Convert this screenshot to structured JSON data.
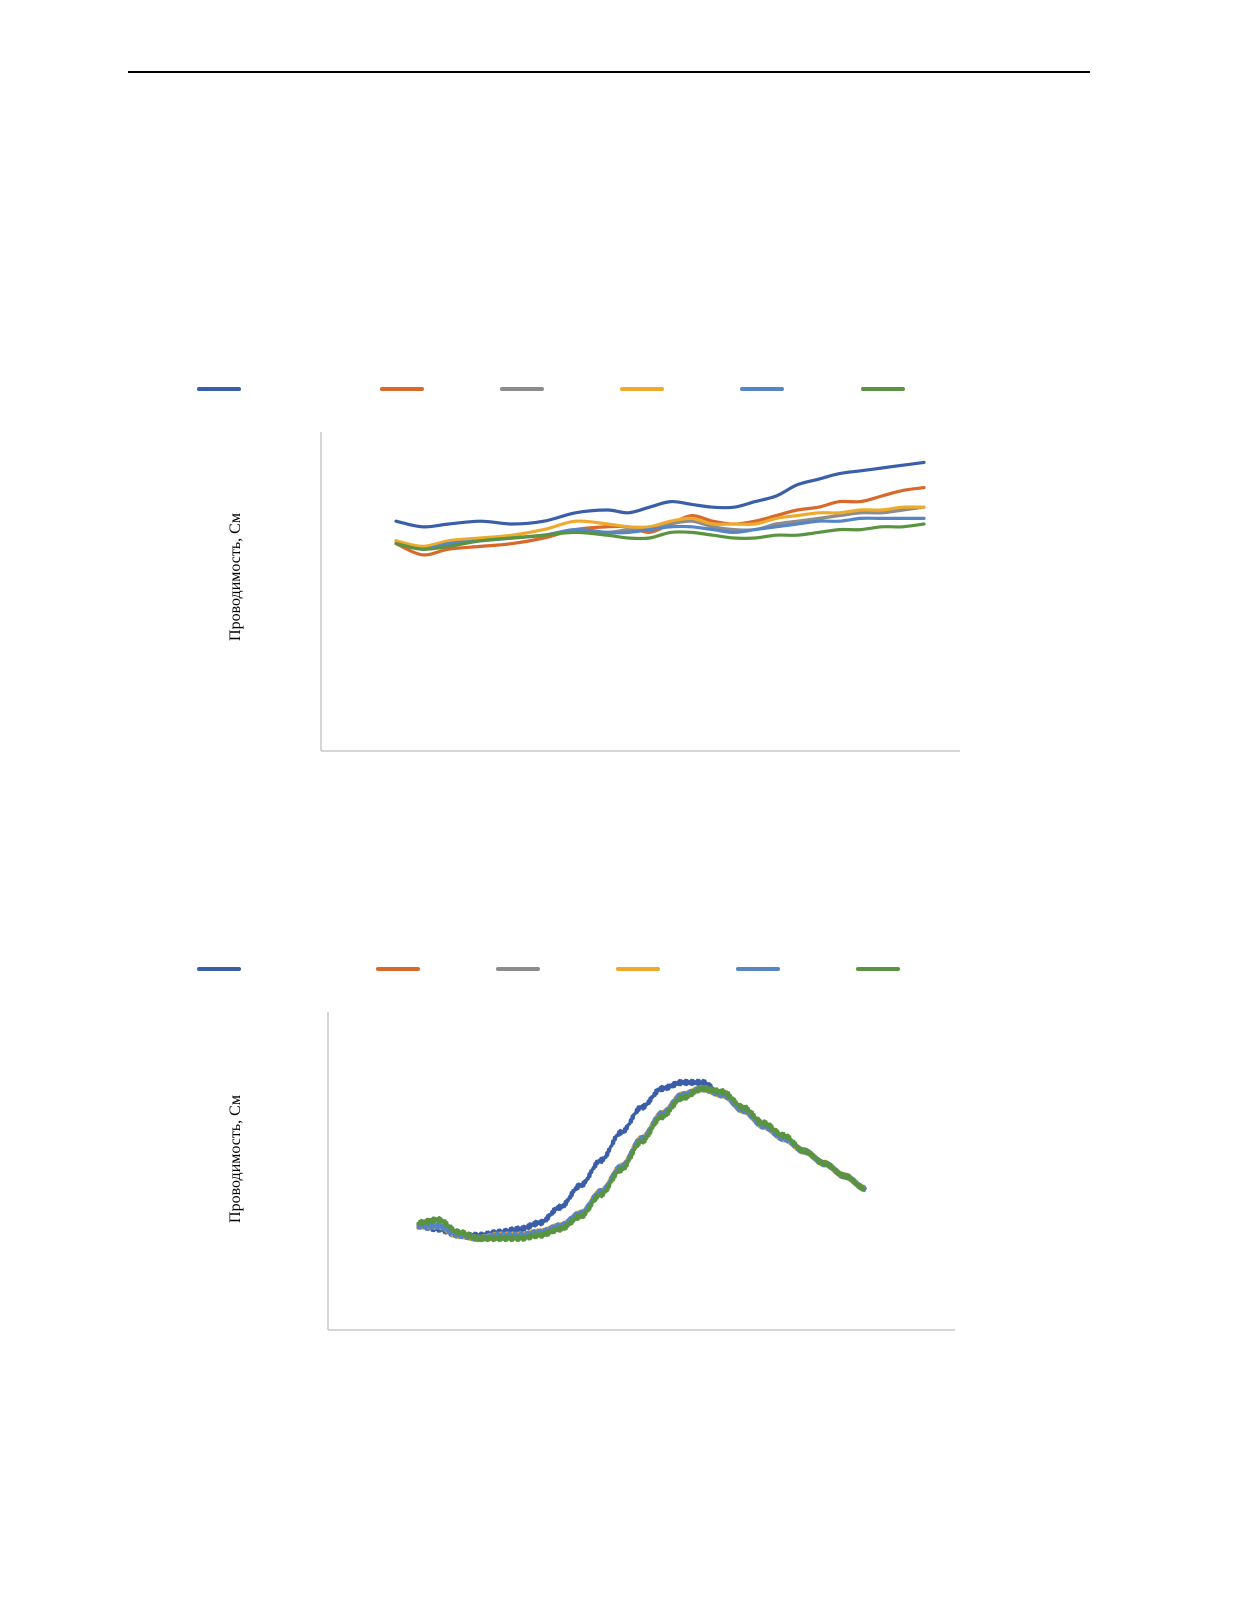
{
  "colors": {
    "axis": "#c8c8c8",
    "series": [
      "#3a5ea8",
      "#d8692a",
      "#8c8c8c",
      "#eeaa2c",
      "#5585c4",
      "#5a9440"
    ]
  },
  "chart_data": [
    {
      "type": "line",
      "ylabel": "Проводимость, См",
      "xlim": [
        0,
        100
      ],
      "ylim": [
        0,
        100
      ],
      "grid": false,
      "legend": "top",
      "series": [
        {
          "color": "#3a5ea8",
          "x": [
            0,
            5,
            10,
            16,
            22,
            28,
            34,
            40,
            44,
            48,
            52,
            56,
            60,
            64,
            68,
            72,
            76,
            80,
            84,
            88,
            92,
            96,
            100
          ],
          "y": [
            71,
            69,
            70,
            71,
            70,
            71,
            74,
            75,
            74,
            76,
            78,
            77,
            76,
            76,
            78,
            80,
            84,
            86,
            88,
            89,
            90,
            91,
            92
          ]
        },
        {
          "color": "#d8692a",
          "x": [
            0,
            5,
            10,
            16,
            22,
            28,
            34,
            40,
            44,
            48,
            52,
            56,
            60,
            64,
            68,
            72,
            76,
            80,
            84,
            88,
            92,
            96,
            100
          ],
          "y": [
            63,
            59,
            61,
            62,
            63,
            65,
            68,
            69,
            69,
            67,
            70,
            73,
            71,
            70,
            71,
            73,
            75,
            76,
            78,
            78,
            80,
            82,
            83
          ]
        },
        {
          "color": "#8c8c8c",
          "x": [
            0,
            5,
            10,
            16,
            22,
            28,
            34,
            40,
            44,
            48,
            52,
            56,
            60,
            64,
            68,
            72,
            76,
            80,
            84,
            88,
            92,
            96,
            100
          ],
          "y": [
            64,
            61,
            63,
            64,
            65,
            66,
            68,
            67,
            68,
            68,
            70,
            71,
            69,
            68,
            68,
            70,
            71,
            72,
            73,
            74,
            74,
            75,
            76
          ]
        },
        {
          "color": "#eeaa2c",
          "x": [
            0,
            5,
            10,
            16,
            22,
            28,
            34,
            40,
            44,
            48,
            52,
            56,
            60,
            64,
            68,
            72,
            76,
            80,
            84,
            88,
            92,
            96,
            100
          ],
          "y": [
            64,
            62,
            64,
            65,
            66,
            68,
            71,
            70,
            69,
            69,
            71,
            72,
            70,
            70,
            70,
            72,
            73,
            74,
            74,
            75,
            75,
            76,
            76
          ]
        },
        {
          "color": "#5585c4",
          "x": [
            0,
            5,
            10,
            16,
            22,
            28,
            34,
            40,
            44,
            48,
            52,
            56,
            60,
            64,
            68,
            72,
            76,
            80,
            84,
            88,
            92,
            96,
            100
          ],
          "y": [
            63,
            61,
            63,
            64,
            65,
            66,
            68,
            67,
            67,
            68,
            69,
            69,
            68,
            67,
            68,
            69,
            70,
            71,
            71,
            72,
            72,
            72,
            72
          ]
        },
        {
          "color": "#5a9440",
          "x": [
            0,
            5,
            10,
            16,
            22,
            28,
            34,
            40,
            44,
            48,
            52,
            56,
            60,
            64,
            68,
            72,
            76,
            80,
            84,
            88,
            92,
            96,
            100
          ],
          "y": [
            63,
            61,
            62,
            64,
            65,
            66,
            67,
            66,
            65,
            65,
            67,
            67,
            66,
            65,
            65,
            66,
            66,
            67,
            68,
            68,
            69,
            69,
            70
          ]
        }
      ]
    },
    {
      "type": "line",
      "ylabel": "Проводимость, См",
      "xlim": [
        0,
        100
      ],
      "ylim": [
        0,
        100
      ],
      "grid": false,
      "legend": "top",
      "series": [
        {
          "color": "#3a5ea8",
          "x": [
            0,
            4,
            8,
            12,
            16,
            20,
            24,
            28,
            32,
            36,
            40,
            44,
            48,
            52,
            56,
            60,
            64,
            68,
            72,
            76,
            80,
            84,
            88
          ],
          "y": [
            34,
            33,
            31,
            31,
            32,
            33,
            35,
            40,
            47,
            55,
            64,
            72,
            78,
            80,
            80,
            76,
            71,
            66,
            62,
            58,
            54,
            50,
            46
          ]
        },
        {
          "color": "#d8692a",
          "x": [
            0,
            4,
            8,
            12,
            16,
            20,
            24,
            28,
            32,
            36,
            40,
            44,
            48,
            52,
            56,
            60,
            64,
            68,
            72,
            76,
            80,
            84,
            88
          ],
          "y": [
            34,
            34,
            31,
            30,
            31,
            31,
            32,
            34,
            38,
            45,
            53,
            62,
            70,
            76,
            78,
            76,
            71,
            66,
            62,
            58,
            54,
            50,
            46
          ]
        },
        {
          "color": "#8c8c8c",
          "x": [
            0,
            4,
            8,
            12,
            16,
            20,
            24,
            28,
            32,
            36,
            40,
            44,
            48,
            52,
            56,
            60,
            64,
            68,
            72,
            76,
            80,
            84,
            88
          ],
          "y": [
            34,
            34,
            31,
            30,
            31,
            31,
            32,
            34,
            38,
            45,
            53,
            62,
            70,
            76,
            78,
            76,
            71,
            66,
            62,
            58,
            54,
            50,
            46
          ]
        },
        {
          "color": "#eeaa2c",
          "x": [
            0,
            4,
            8,
            12,
            16,
            20,
            24,
            28,
            32,
            36,
            40,
            44,
            48,
            52,
            56,
            60,
            64,
            68,
            72,
            76,
            80,
            84,
            88
          ],
          "y": [
            34,
            34,
            31,
            30,
            31,
            31,
            32,
            34,
            38,
            45,
            53,
            62,
            70,
            76,
            78,
            76,
            71,
            66,
            62,
            58,
            54,
            50,
            46
          ]
        },
        {
          "color": "#5585c4",
          "x": [
            0,
            4,
            8,
            12,
            16,
            20,
            24,
            28,
            32,
            36,
            40,
            44,
            48,
            52,
            56,
            60,
            64,
            68,
            72,
            76,
            80,
            84,
            88
          ],
          "y": [
            34,
            34,
            31,
            30,
            31,
            31,
            32,
            34,
            38,
            45,
            53,
            62,
            70,
            76,
            78,
            76,
            71,
            66,
            62,
            58,
            54,
            50,
            46
          ]
        },
        {
          "color": "#5a9440",
          "x": [
            0,
            4,
            8,
            12,
            16,
            20,
            24,
            28,
            32,
            36,
            40,
            44,
            48,
            52,
            56,
            60,
            64,
            68,
            72,
            76,
            80,
            84,
            88
          ],
          "y": [
            35,
            36,
            32,
            30,
            30,
            30,
            31,
            33,
            37,
            44,
            52,
            61,
            69,
            75,
            78,
            77,
            72,
            67,
            63,
            58,
            54,
            50,
            46
          ]
        }
      ]
    }
  ]
}
